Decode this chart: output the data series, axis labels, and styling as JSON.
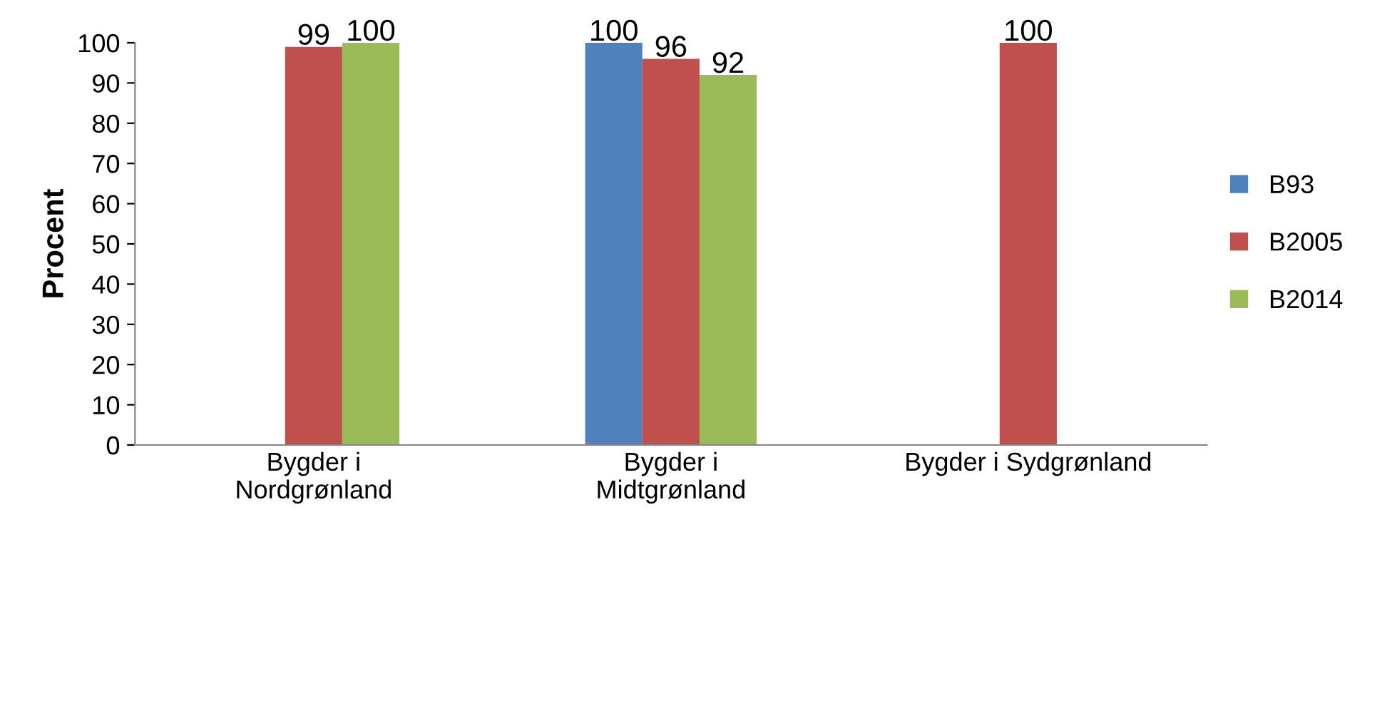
{
  "chart_data": {
    "type": "bar",
    "ylabel": "Procent",
    "categories": [
      "Bygder i\nNordgrønland",
      "Bygder i\nMidtgrønland",
      "Bygder i Sydgrønland"
    ],
    "series": [
      {
        "name": "B93",
        "color": "#4f81bd",
        "values": [
          null,
          100,
          null
        ]
      },
      {
        "name": "B2005",
        "color": "#c0504d",
        "values": [
          99,
          96,
          100
        ]
      },
      {
        "name": "B2014",
        "color": "#9bbb59",
        "values": [
          100,
          92,
          null
        ]
      }
    ],
    "ylim": [
      0,
      100
    ],
    "yticks": [
      0,
      10,
      20,
      30,
      40,
      50,
      60,
      70,
      80,
      90,
      100
    ],
    "grid": false,
    "legend": "right",
    "data_labels": true
  }
}
